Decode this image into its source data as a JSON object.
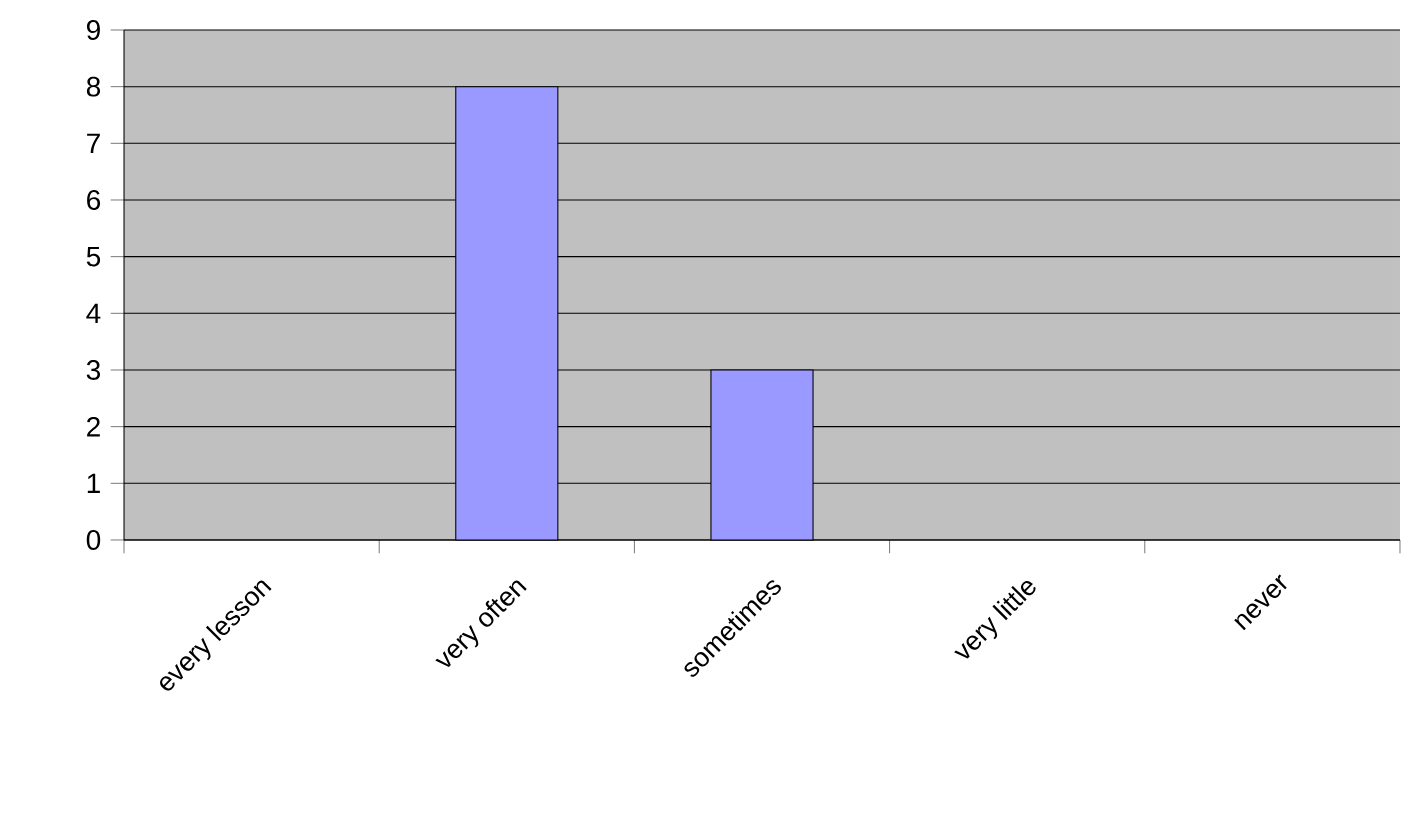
{
  "chart_data": {
    "type": "bar",
    "categories": [
      "every lesson",
      "very often",
      "sometimes",
      "very little",
      "never"
    ],
    "values": [
      0,
      8,
      3,
      0,
      0
    ],
    "color": "#9999ff",
    "ylim": [
      0,
      9
    ],
    "yticks": [
      0,
      1,
      2,
      3,
      4,
      5,
      6,
      7,
      8,
      9
    ],
    "grid": "y"
  }
}
